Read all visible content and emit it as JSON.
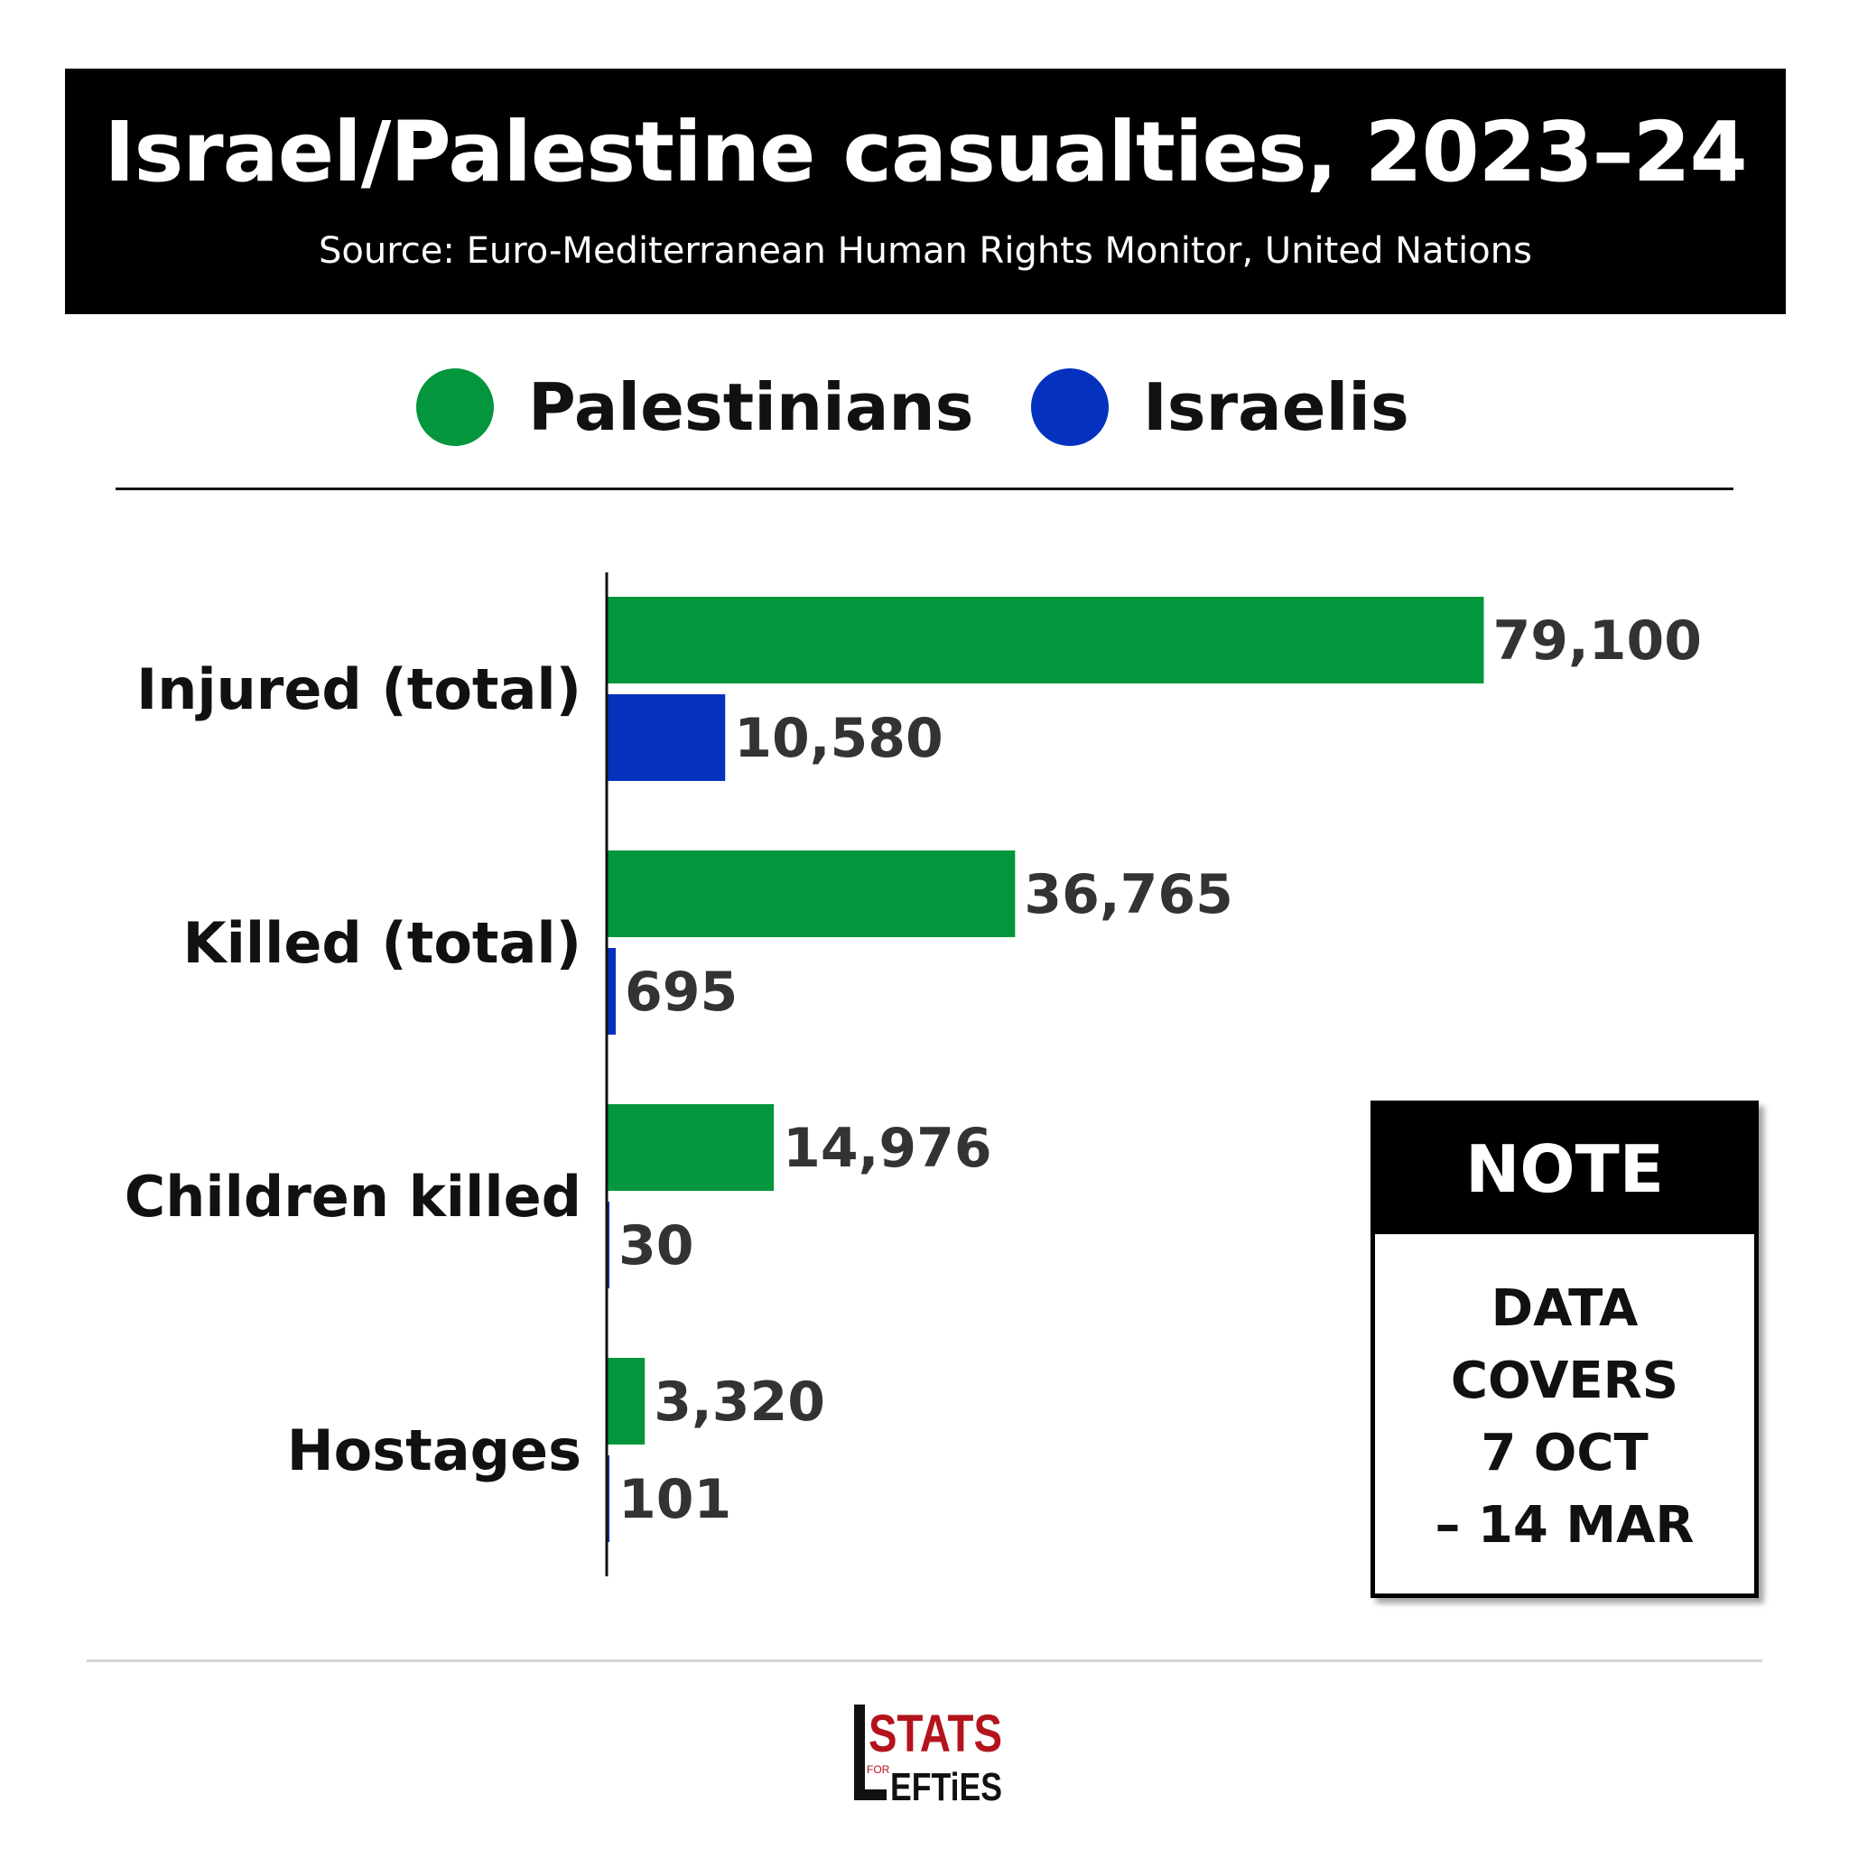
{
  "header": {
    "title": "Israel/Palestine casualties, 2023–24",
    "subtitle": "Source: Euro-Mediterranean Human Rights Monitor, United Nations"
  },
  "legend": {
    "items": [
      {
        "label": "Palestinians",
        "color": "#03963c"
      },
      {
        "label": "Israelis",
        "color": "#0432bf"
      }
    ]
  },
  "chart_data": {
    "type": "bar",
    "orientation": "horizontal",
    "categories": [
      "Injured (total)",
      "Killed (total)",
      "Children killed",
      "Hostages"
    ],
    "series": [
      {
        "name": "Palestinians",
        "color": "#03963c",
        "values": [
          79100,
          36765,
          14976,
          3320
        ],
        "labels": [
          "79,100",
          "36,765",
          "14,976",
          "3,320"
        ]
      },
      {
        "name": "Israelis",
        "color": "#0432bf",
        "values": [
          10580,
          695,
          30,
          101
        ],
        "labels": [
          "10,580",
          "695",
          "30",
          "101"
        ]
      }
    ],
    "legend_position": "top",
    "grid": false
  },
  "note": {
    "heading": "NOTE",
    "lines": [
      "DATA",
      "COVERS",
      "7 OCT",
      "– 14 MAR"
    ]
  },
  "logo": {
    "text_top": "STATS",
    "text_for": "FOR",
    "text_bottom": "EFTiES",
    "color_red": "#b3141c",
    "color_black": "#111111"
  }
}
